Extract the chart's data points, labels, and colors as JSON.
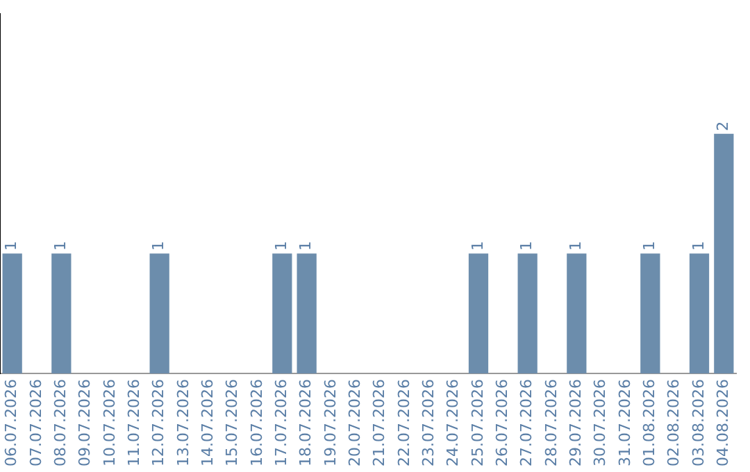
{
  "chart_data": {
    "type": "bar",
    "categories": [
      "06.07.2026",
      "07.07.2026",
      "08.07.2026",
      "09.07.2026",
      "10.07.2026",
      "11.07.2026",
      "12.07.2026",
      "13.07.2026",
      "14.07.2026",
      "15.07.2026",
      "16.07.2026",
      "17.07.2026",
      "18.07.2026",
      "19.07.2026",
      "20.07.2026",
      "21.07.2026",
      "22.07.2026",
      "23.07.2026",
      "24.07.2026",
      "25.07.2026",
      "26.07.2026",
      "27.07.2026",
      "28.07.2026",
      "29.07.2026",
      "30.07.2026",
      "31.07.2026",
      "01.08.2026",
      "02.08.2026",
      "03.08.2026",
      "04.08.2026"
    ],
    "values": [
      1,
      0,
      1,
      0,
      0,
      0,
      1,
      0,
      0,
      0,
      0,
      1,
      1,
      0,
      0,
      0,
      0,
      0,
      0,
      1,
      0,
      1,
      0,
      1,
      0,
      0,
      1,
      0,
      1,
      2
    ],
    "value_labels": [
      "1",
      null,
      "1",
      null,
      null,
      null,
      "1",
      null,
      null,
      null,
      null,
      "1",
      "1",
      null,
      null,
      null,
      null,
      null,
      null,
      "1",
      null,
      "1",
      null,
      "1",
      null,
      null,
      "1",
      null,
      "1",
      "2"
    ],
    "color": "#6c8dac",
    "grid": false,
    "legend": false,
    "tick_labels": "x"
  }
}
